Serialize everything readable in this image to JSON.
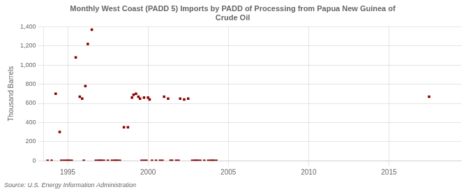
{
  "chart_data": {
    "type": "scatter",
    "title": "Monthly West Coast (PADD 5) Imports by PADD of Processing from Papua New Guinea of\nCrude Oil",
    "ylabel": "Thousand Barrels",
    "annotations": [
      "Source: U.S. Energy Information Administration"
    ],
    "color": "#8b0000",
    "marker": "square",
    "grid": true,
    "x": [
      1994.25,
      1994.5,
      1995.5,
      1995.75,
      1995.9,
      1996.1,
      1996.25,
      1996.5,
      1998.5,
      1998.75,
      1999,
      1999.1,
      1999.25,
      1999.4,
      1999.5,
      1999.75,
      2000,
      2000.1,
      2001,
      2001.25,
      2002,
      2002.25,
      2002.5,
      2017.5,
      1993.75,
      1994,
      1994.6,
      1994.75,
      1994.9,
      1995,
      1995.1,
      1995.25,
      1996,
      1996.75,
      1996.9,
      1997,
      1997.1,
      1997.25,
      1997.5,
      1997.75,
      1997.9,
      1998,
      1998.1,
      1998.25,
      1999.6,
      1999.75,
      1999.9,
      2000.25,
      2000.5,
      2000.75,
      2000.9,
      2001.4,
      2001.5,
      2001.75,
      2001.9,
      2002.75,
      2002.9,
      2003,
      2003.1,
      2003.25,
      2003.5,
      2003.75,
      2003.9,
      2004,
      2004.1,
      2004.25
    ],
    "values": [
      700,
      300,
      1080,
      670,
      650,
      780,
      1220,
      1370,
      350,
      350,
      660,
      690,
      700,
      670,
      650,
      660,
      660,
      640,
      670,
      650,
      650,
      640,
      650,
      670,
      0,
      0,
      0,
      0,
      0,
      0,
      0,
      0,
      0,
      0,
      0,
      0,
      0,
      0,
      0,
      0,
      0,
      0,
      0,
      0,
      0,
      0,
      0,
      0,
      0,
      0,
      0,
      0,
      0,
      0,
      0,
      0,
      0,
      0,
      0,
      0,
      0,
      0,
      0,
      0,
      0,
      0
    ],
    "xlim": [
      1993.5,
      2019.5
    ],
    "xticks": [
      1995,
      2000,
      2005,
      2010,
      2015
    ],
    "ylim": [
      0,
      1400
    ],
    "yticks": [
      0,
      200,
      400,
      600,
      800,
      {
        "value": 1000,
        "label": "1,000"
      },
      {
        "value": 1200,
        "label": "1,200"
      },
      {
        "value": 1400,
        "label": "1,400"
      }
    ]
  }
}
